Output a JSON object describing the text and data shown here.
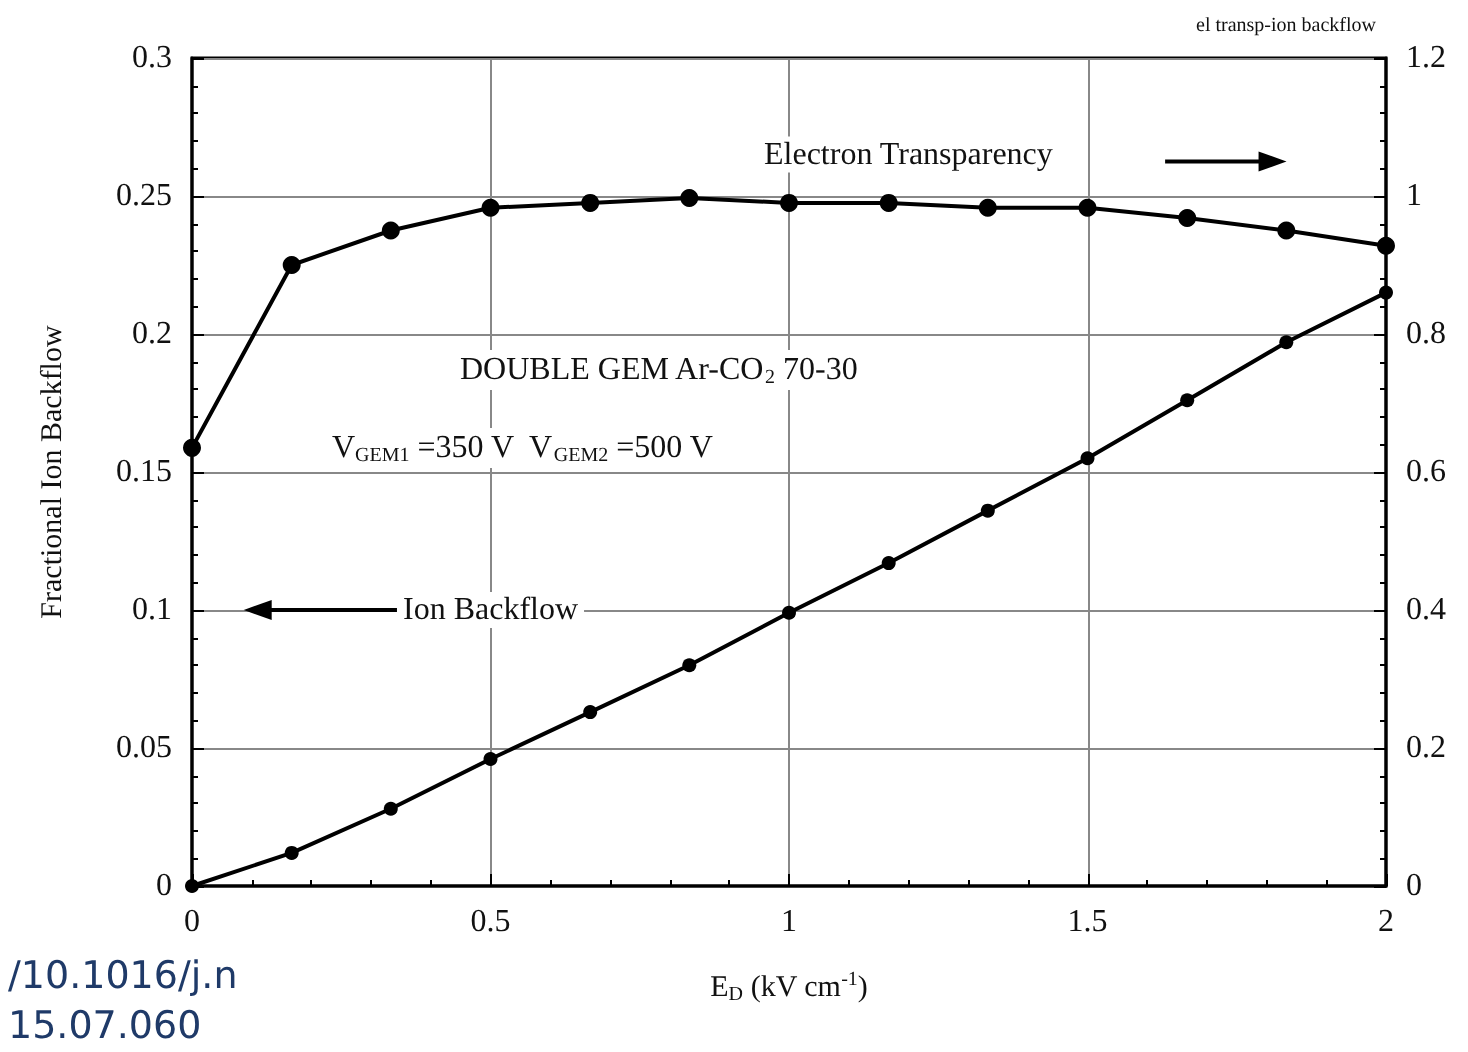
{
  "chart_data": {
    "type": "line",
    "xlabel": "E$_{D}$ (kV cm$^{-1}$)",
    "ylabel": "Fractional Ion Backflow",
    "x": [
      0,
      0.167,
      0.333,
      0.5,
      0.667,
      0.833,
      1,
      1.167,
      1.333,
      1.5,
      1.667,
      1.833,
      2
    ],
    "series": [
      {
        "name": "Electron Transparency",
        "color": "#000000",
        "axis": "y2",
        "values": [
          0.635,
          0.9,
          0.95,
          0.983,
          0.99,
          0.997,
          0.99,
          0.99,
          0.983,
          0.983,
          0.968,
          0.95,
          0.928
        ]
      },
      {
        "name": "Ion Backflow",
        "color": "#000000",
        "values": [
          0,
          0.012,
          0.028,
          0.046,
          0.063,
          0.08,
          0.099,
          0.117,
          0.136,
          0.155,
          0.176,
          0.197,
          0.215
        ]
      }
    ],
    "xlim": [
      0,
      2
    ],
    "xticks": [
      0,
      0.5,
      1,
      1.5,
      2
    ],
    "ylim": [
      0,
      0.3
    ],
    "yticks": [
      0,
      0.05,
      0.1,
      0.15,
      0.2,
      0.25,
      0.3
    ],
    "y2lim": [
      0,
      1.2
    ],
    "y2ticks": [
      0,
      0.2,
      0.4,
      0.6,
      0.8,
      1,
      1.2
    ],
    "annotations": [
      "el transp-ion backflow",
      "DOUBLE GEM Ar-CO$_{2}$ 70-30",
      "V$_{GEM1}$ =350 V  V$_{GEM2}$ =500 V",
      "/10.1016/j.n",
      "15.07.060"
    ],
    "grid": true,
    "marker": "circle",
    "line_style": "solid",
    "legend": false
  }
}
